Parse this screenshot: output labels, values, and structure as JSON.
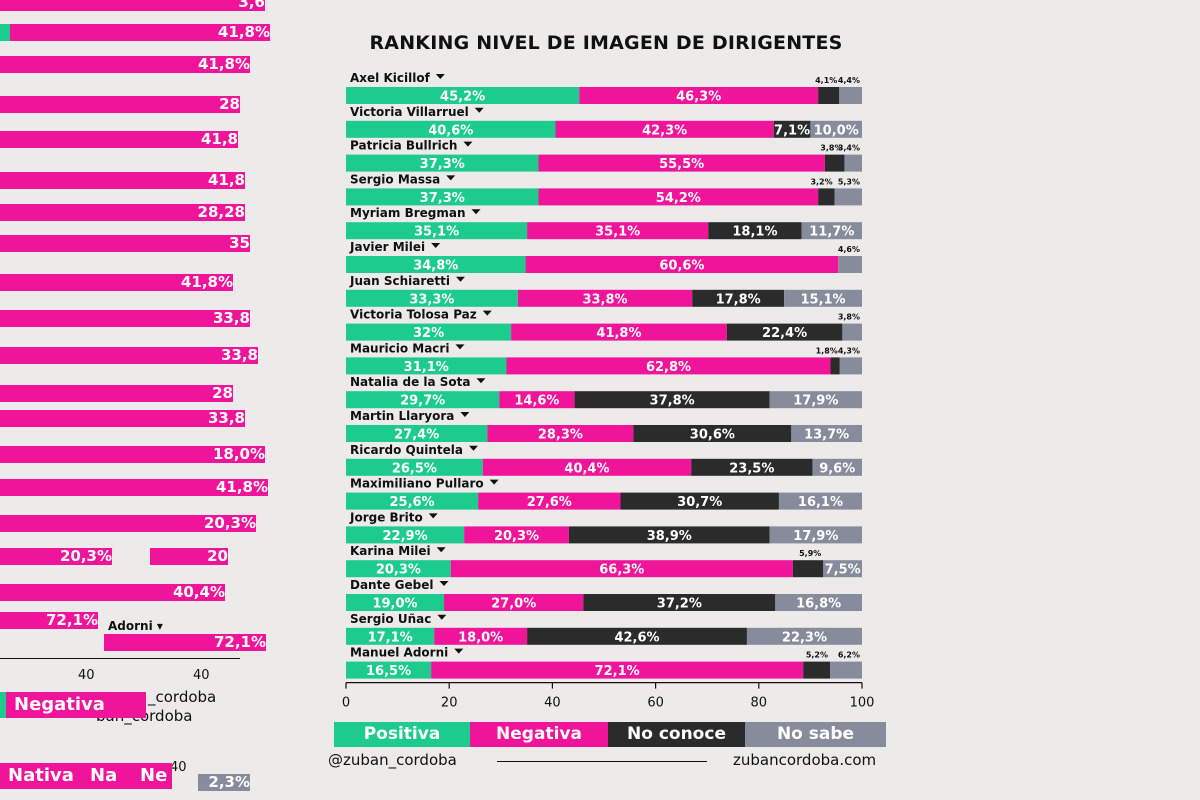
{
  "title": "RANKING NIVEL DE IMAGEN DE DIRIGENTES",
  "colors": {
    "positiva": "#1dcc8d",
    "negativa": "#f0149a",
    "no_conoce": "#2b2b2b",
    "no_sabe": "#878c9c",
    "background": "#ecebea"
  },
  "chart_data": {
    "type": "bar",
    "orientation": "horizontal",
    "stacked": true,
    "xlim": [
      0,
      100
    ],
    "xticks": [
      0,
      20,
      40,
      60,
      80,
      100
    ],
    "categories": [
      "Axel Kicillof",
      "Victoria Villarruel",
      "Patricia Bullrich",
      "Sergio Massa",
      "Myriam Bregman",
      "Javier Milei",
      "Juan Schiaretti",
      "Victoria Tolosa Paz",
      "Mauricio Macri",
      "Natalia de la Sota",
      "Martin Llaryora",
      "Ricardo Quintela",
      "Maximiliano Pullaro",
      "Jorge Brito",
      "Karina Milei",
      "Dante Gebel",
      "Sergio Uñac",
      "Manuel Adorni"
    ],
    "series": [
      {
        "name": "Positiva",
        "color": "#1dcc8d",
        "values": [
          45.2,
          40.6,
          37.3,
          37.3,
          35.1,
          34.8,
          33.3,
          32,
          31.1,
          29.7,
          27.4,
          26.5,
          25.6,
          22.9,
          20.3,
          19.0,
          17.1,
          16.5
        ],
        "labels": [
          "45,2%",
          "40,6%",
          "37,3%",
          "37,3%",
          "35,1%",
          "34,8%",
          "33,3%",
          "32%",
          "31,1%",
          "29,7%",
          "27,4%",
          "26,5%",
          "25,6%",
          "22,9%",
          "20,3%",
          "19,0%",
          "17,1%",
          "16,5%"
        ]
      },
      {
        "name": "Negativa",
        "color": "#f0149a",
        "values": [
          46.3,
          42.3,
          55.5,
          54.2,
          35.1,
          60.6,
          33.8,
          41.8,
          62.8,
          14.6,
          28.3,
          40.4,
          27.6,
          20.3,
          66.3,
          27.0,
          18.0,
          72.1
        ],
        "labels": [
          "46,3%",
          "42,3%",
          "55,5%",
          "54,2%",
          "35,1%",
          "60,6%",
          "33,8%",
          "41,8%",
          "62,8%",
          "14,6%",
          "28,3%",
          "40,4%",
          "27,6%",
          "20,3%",
          "66,3%",
          "27,0%",
          "18,0%",
          "72,1%"
        ]
      },
      {
        "name": "No conoce",
        "color": "#2b2b2b",
        "values": [
          4.1,
          7.1,
          3.8,
          3.2,
          18.1,
          0,
          17.8,
          22.4,
          1.8,
          37.8,
          30.6,
          23.5,
          30.7,
          38.9,
          5.9,
          37.2,
          42.6,
          5.2
        ],
        "labels": [
          "4,1%",
          "7,1%",
          "3,8%",
          "3,2%",
          "18,1%",
          "",
          "17,8%",
          "22,4%",
          "1,8%",
          "37,8%",
          "30,6%",
          "23,5%",
          "30,7%",
          "38,9%",
          "5,9%",
          "37,2%",
          "42,6%",
          "5,2%"
        ]
      },
      {
        "name": "No sabe",
        "color": "#878c9c",
        "values": [
          4.4,
          10.0,
          3.4,
          5.3,
          11.7,
          4.6,
          15.1,
          3.8,
          4.3,
          17.9,
          13.7,
          9.6,
          16.1,
          17.9,
          7.5,
          16.8,
          22.3,
          6.2
        ],
        "labels": [
          "4,4%",
          "10,0%",
          "3,4%",
          "5,3%",
          "11,7%",
          "4,6%",
          "15,1%",
          "3,8%",
          "4,3%",
          "17,9%",
          "13,7%",
          "9,6%",
          "16,1%",
          "17,9%",
          "7,5%",
          "16,8%",
          "22,3%",
          "6,2%"
        ]
      }
    ]
  },
  "legend": {
    "positiva": "Positiva",
    "negativa": "Negativa",
    "no_conoce": "No conoce",
    "no_sabe": "No sabe"
  },
  "footer": {
    "handle": "@zuban_cordoba",
    "site": "zubancordoba.com"
  },
  "ghost": {
    "bar_labels": [
      "3,6",
      "41,8%",
      "41,8%",
      "28",
      "41,8",
      "41,8",
      "28,28",
      "35",
      "41,8%",
      "33,8",
      "33,8",
      "28",
      "33,8",
      "18,0%",
      "41,8%",
      "20,3%",
      "20,3%",
      "20",
      "40,4%",
      "72,1%"
    ],
    "axis_labels": [
      "40",
      "40",
      "40"
    ],
    "name": "Adorni",
    "handle_fragments": [
      "_cordoba",
      "ban_cordoba"
    ],
    "legend_fragments": [
      "Negativa",
      "Nativa",
      "Na",
      "Ne"
    ],
    "percent_fragment": "2,3%"
  }
}
